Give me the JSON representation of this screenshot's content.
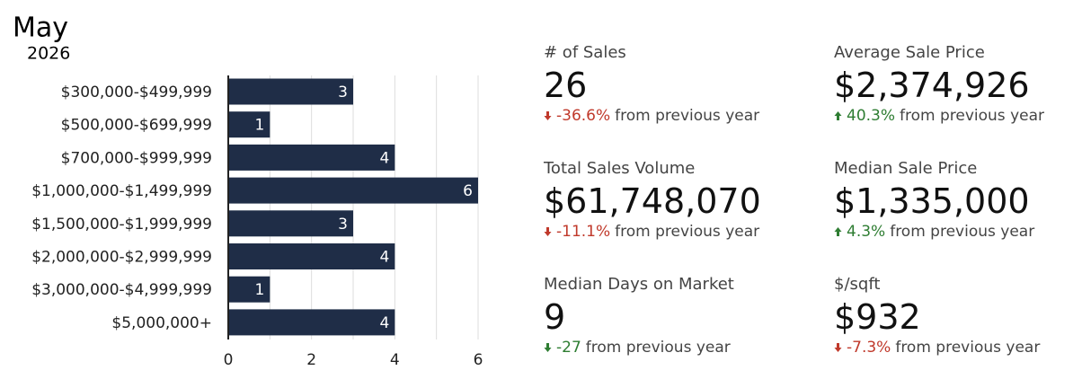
{
  "chart_data": {
    "type": "hbar",
    "title": "May",
    "subtitle": "2026",
    "categories": [
      "$300,000-$499,999",
      "$500,000-$699,999",
      "$700,000-$999,999",
      "$1,000,000-$1,499,999",
      "$1,500,000-$1,999,999",
      "$2,000,000-$2,999,999",
      "$3,000,000-$4,999,999",
      "$5,000,000+"
    ],
    "values": [
      3,
      1,
      4,
      6,
      3,
      4,
      1,
      4
    ],
    "color": "#1f2d47",
    "xlim": [
      0,
      6
    ],
    "xticks": [
      0,
      2,
      4,
      6
    ],
    "minor_xticks": [
      1,
      3,
      5
    ],
    "grid": true
  },
  "stats": [
    {
      "label": "# of Sales",
      "value": "26",
      "change": "-36.6%",
      "note": "from previous year",
      "direction": "down",
      "color": "#c0392b"
    },
    {
      "label": "Average Sale Price",
      "value": "$2,374,926",
      "change": "40.3%",
      "note": "from previous year",
      "direction": "up",
      "color": "#2e7d32"
    },
    {
      "label": "Total Sales Volume",
      "value": "$61,748,070",
      "change": "-11.1%",
      "note": "from previous year",
      "direction": "down",
      "color": "#c0392b"
    },
    {
      "label": "Median Sale Price",
      "value": "$1,335,000",
      "change": "4.3%",
      "note": "from previous year",
      "direction": "up",
      "color": "#2e7d32"
    },
    {
      "label": "Median Days on Market",
      "value": "9",
      "change": "-27",
      "note": "from previous year",
      "direction": "down",
      "color": "#2e7d32"
    },
    {
      "label": "$/sqft",
      "value": "$932",
      "change": "-7.3%",
      "note": "from previous year",
      "direction": "down",
      "color": "#c0392b"
    }
  ]
}
